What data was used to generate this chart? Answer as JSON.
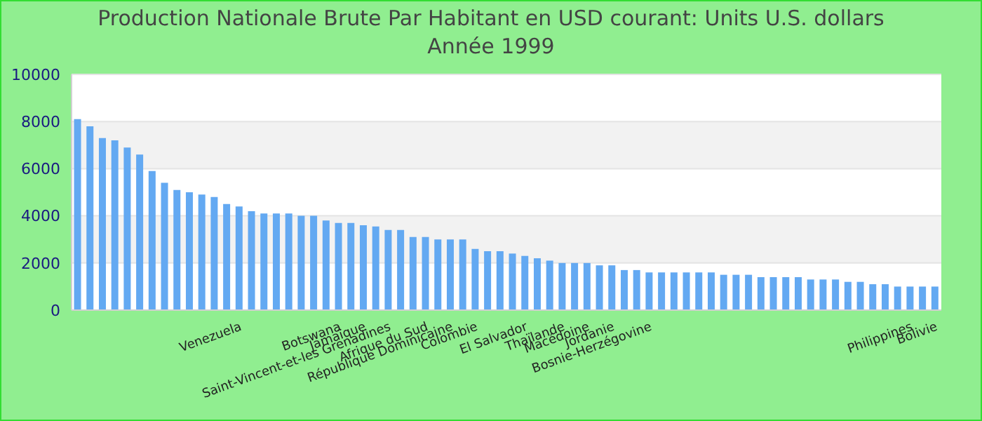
{
  "chart_data": {
    "type": "bar",
    "title": "Production Nationale Brute Par Habitant en USD courant: Units U.S. dollars",
    "subtitle": "Année 1999",
    "categories": [
      null,
      null,
      null,
      null,
      null,
      null,
      null,
      null,
      null,
      null,
      null,
      null,
      null,
      "Venezuela",
      null,
      null,
      null,
      null,
      null,
      null,
      null,
      "Botswana",
      null,
      "Jamaïque",
      null,
      "Saint-Vincent-et-les Grenadines",
      null,
      null,
      "Afrique du Sud",
      null,
      "République Dominicaine",
      null,
      "Colombie",
      null,
      null,
      null,
      "El Salvador",
      null,
      null,
      "Thaïlande",
      null,
      "Macédoine",
      null,
      "Jordanie",
      null,
      null,
      "Bosnie-Herzégovine",
      null,
      null,
      null,
      null,
      null,
      null,
      null,
      null,
      null,
      null,
      null,
      null,
      null,
      null,
      null,
      null,
      null,
      null,
      null,
      null,
      "Philippines",
      null,
      "Bolivie"
    ],
    "values": [
      8100,
      7800,
      7300,
      7200,
      6900,
      6600,
      5900,
      5400,
      5100,
      5000,
      4900,
      4800,
      4500,
      4400,
      4200,
      4100,
      4100,
      4100,
      4000,
      4000,
      3800,
      3700,
      3700,
      3600,
      3550,
      3400,
      3400,
      3100,
      3100,
      3000,
      3000,
      3000,
      2600,
      2500,
      2500,
      2400,
      2300,
      2200,
      2100,
      2000,
      2000,
      2000,
      1900,
      1900,
      1700,
      1700,
      1600,
      1600,
      1600,
      1600,
      1600,
      1600,
      1500,
      1500,
      1500,
      1400,
      1400,
      1400,
      1400,
      1300,
      1300,
      1300,
      1200,
      1200,
      1100,
      1100,
      1000,
      1000,
      1000,
      1000
    ],
    "color": "#63a9f2",
    "ylim": [
      0,
      10000
    ],
    "yticks": [
      0,
      2000,
      4000,
      6000,
      8000,
      10000
    ],
    "grid": "y"
  }
}
